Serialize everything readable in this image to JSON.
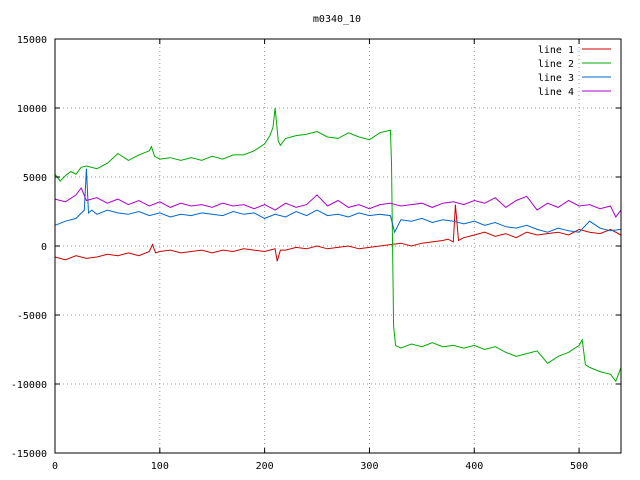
{
  "chart_data": {
    "type": "line",
    "title": "m0340_10",
    "xlabel": "",
    "ylabel": "",
    "xlim": [
      0,
      540
    ],
    "ylim": [
      -15000,
      15000
    ],
    "x_ticks": [
      0,
      100,
      200,
      300,
      400,
      500
    ],
    "y_ticks": [
      -15000,
      -10000,
      -5000,
      0,
      5000,
      10000,
      15000
    ],
    "grid": true,
    "legend_position": "top-right",
    "series": [
      {
        "name": "line 1",
        "color": "#cc0000",
        "x": [
          0,
          10,
          20,
          30,
          40,
          50,
          60,
          70,
          80,
          90,
          93,
          96,
          100,
          110,
          120,
          130,
          140,
          150,
          160,
          170,
          180,
          190,
          200,
          210,
          212,
          215,
          220,
          230,
          240,
          250,
          260,
          270,
          280,
          290,
          300,
          310,
          320,
          330,
          340,
          350,
          360,
          370,
          375,
          380,
          382,
          385,
          390,
          400,
          410,
          420,
          430,
          440,
          450,
          460,
          470,
          480,
          490,
          500,
          510,
          520,
          530,
          540
        ],
        "y": [
          -800,
          -1000,
          -700,
          -900,
          -800,
          -600,
          -700,
          -500,
          -700,
          -400,
          100,
          -500,
          -400,
          -300,
          -500,
          -400,
          -300,
          -500,
          -300,
          -400,
          -200,
          -300,
          -400,
          -200,
          -1100,
          -300,
          -300,
          -100,
          -200,
          0,
          -200,
          -100,
          0,
          -200,
          -100,
          0,
          100,
          200,
          0,
          200,
          300,
          400,
          500,
          300,
          3000,
          400,
          600,
          800,
          1000,
          700,
          900,
          600,
          1000,
          800,
          900,
          1000,
          800,
          1200,
          1000,
          900,
          1200,
          800
        ]
      },
      {
        "name": "line 2",
        "color": "#00aa00",
        "x": [
          0,
          5,
          10,
          15,
          20,
          25,
          30,
          40,
          50,
          60,
          70,
          80,
          90,
          92,
          95,
          100,
          110,
          120,
          130,
          140,
          150,
          160,
          170,
          180,
          190,
          200,
          205,
          208,
          210,
          213,
          215,
          220,
          230,
          240,
          250,
          260,
          270,
          280,
          290,
          300,
          310,
          320,
          321,
          323,
          325,
          330,
          340,
          350,
          360,
          370,
          380,
          390,
          400,
          410,
          420,
          430,
          440,
          450,
          460,
          470,
          480,
          490,
          500,
          503,
          506,
          510,
          520,
          530,
          535,
          540
        ],
        "y": [
          5200,
          4700,
          5100,
          5400,
          5200,
          5700,
          5800,
          5600,
          6000,
          6700,
          6200,
          6600,
          6900,
          7200,
          6500,
          6300,
          6400,
          6200,
          6400,
          6200,
          6500,
          6300,
          6600,
          6600,
          6900,
          7400,
          8000,
          8600,
          10000,
          7600,
          7300,
          7800,
          8000,
          8100,
          8300,
          7900,
          7800,
          8200,
          7900,
          7700,
          8200,
          8400,
          6000,
          -5800,
          -7200,
          -7400,
          -7100,
          -7300,
          -7000,
          -7300,
          -7200,
          -7400,
          -7200,
          -7500,
          -7300,
          -7700,
          -8000,
          -7800,
          -7600,
          -8500,
          -8000,
          -7700,
          -7200,
          -6800,
          -8600,
          -8800,
          -9100,
          -9300,
          -9800,
          -8800
        ]
      },
      {
        "name": "line 3",
        "color": "#0066cc",
        "x": [
          0,
          10,
          20,
          28,
          30,
          32,
          35,
          40,
          50,
          60,
          70,
          80,
          90,
          100,
          110,
          120,
          130,
          140,
          150,
          160,
          170,
          180,
          190,
          200,
          210,
          220,
          230,
          240,
          250,
          260,
          270,
          280,
          290,
          300,
          310,
          320,
          324,
          330,
          340,
          350,
          360,
          370,
          380,
          390,
          400,
          410,
          420,
          430,
          440,
          450,
          460,
          470,
          480,
          490,
          500,
          510,
          520,
          530,
          540
        ],
        "y": [
          1500,
          1800,
          2000,
          2600,
          5600,
          2400,
          2600,
          2300,
          2600,
          2400,
          2300,
          2500,
          2200,
          2400,
          2100,
          2300,
          2200,
          2400,
          2300,
          2200,
          2500,
          2300,
          2400,
          2000,
          2300,
          2100,
          2500,
          2200,
          2600,
          2200,
          2300,
          2100,
          2400,
          2200,
          2300,
          2200,
          1000,
          1900,
          1800,
          2000,
          1700,
          1900,
          1800,
          1600,
          1800,
          1500,
          1700,
          1400,
          1300,
          1500,
          1200,
          1000,
          1300,
          1100,
          1000,
          1800,
          1300,
          1100,
          1200
        ]
      },
      {
        "name": "line 4",
        "color": "#aa00cc",
        "x": [
          0,
          10,
          20,
          25,
          30,
          40,
          50,
          60,
          70,
          80,
          90,
          100,
          110,
          120,
          130,
          140,
          150,
          160,
          170,
          180,
          190,
          200,
          210,
          220,
          230,
          240,
          250,
          260,
          270,
          280,
          290,
          300,
          310,
          320,
          330,
          340,
          350,
          360,
          370,
          380,
          390,
          400,
          410,
          420,
          430,
          440,
          450,
          460,
          470,
          480,
          490,
          500,
          510,
          520,
          530,
          535,
          540
        ],
        "y": [
          3400,
          3200,
          3700,
          4200,
          3300,
          3500,
          3100,
          3400,
          3000,
          3300,
          2900,
          3200,
          2800,
          3100,
          2900,
          3000,
          2800,
          3100,
          2900,
          3000,
          2700,
          3000,
          2600,
          3100,
          2800,
          3000,
          3700,
          2900,
          3300,
          2800,
          3000,
          2700,
          3000,
          3100,
          2900,
          3000,
          3100,
          2800,
          3100,
          3200,
          3000,
          3300,
          3100,
          3500,
          2800,
          3300,
          3600,
          2600,
          3100,
          2800,
          3300,
          2900,
          3000,
          2700,
          2900,
          2100,
          2600
        ]
      }
    ]
  }
}
